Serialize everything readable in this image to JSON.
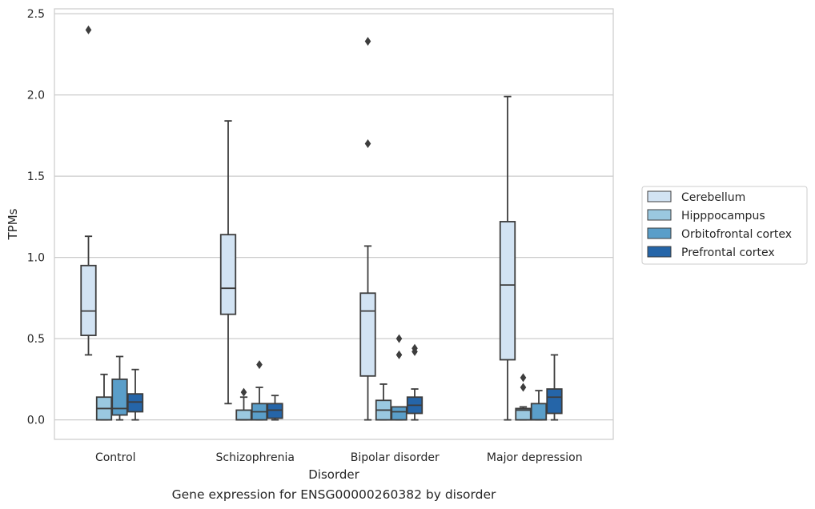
{
  "chart_data": {
    "type": "boxplot",
    "title": "",
    "caption": "Gene expression for ENSG00000260382 by disorder",
    "xlabel": "Disorder",
    "ylabel": "TPMs",
    "ylim": [
      -0.12,
      2.53
    ],
    "yticks": [
      "0.0",
      "0.5",
      "1.0",
      "1.5",
      "2.0",
      "2.5"
    ],
    "ytick_values": [
      0,
      0.5,
      1.0,
      1.5,
      2.0,
      2.5
    ],
    "grid": "horizontal",
    "legend_position": "right",
    "categories": [
      "Control",
      "Schizophrenia",
      "Bipolar disorder",
      "Major depression"
    ],
    "series": [
      {
        "name": "Cerebellum",
        "color": "#d2e3f3",
        "boxes": [
          {
            "whislo": 0.4,
            "q1": 0.52,
            "med": 0.67,
            "q3": 0.95,
            "whishi": 1.13,
            "fliers": [
              2.4
            ]
          },
          {
            "whislo": 0.1,
            "q1": 0.65,
            "med": 0.81,
            "q3": 1.14,
            "whishi": 1.84,
            "fliers": []
          },
          {
            "whislo": 0.0,
            "q1": 0.27,
            "med": 0.67,
            "q3": 0.78,
            "whishi": 1.07,
            "fliers": [
              1.7,
              2.33
            ]
          },
          {
            "whislo": 0.0,
            "q1": 0.37,
            "med": 0.83,
            "q3": 1.22,
            "whishi": 1.99,
            "fliers": []
          }
        ]
      },
      {
        "name": "Hipppocampus",
        "color": "#9ac8e0",
        "boxes": [
          {
            "whislo": 0.0,
            "q1": 0.0,
            "med": 0.07,
            "q3": 0.14,
            "whishi": 0.28,
            "fliers": []
          },
          {
            "whislo": 0.0,
            "q1": 0.0,
            "med": 0.0,
            "q3": 0.06,
            "whishi": 0.14,
            "fliers": [
              0.17
            ]
          },
          {
            "whislo": 0.0,
            "q1": 0.0,
            "med": 0.06,
            "q3": 0.12,
            "whishi": 0.22,
            "fliers": []
          },
          {
            "whislo": 0.0,
            "q1": 0.0,
            "med": 0.06,
            "q3": 0.07,
            "whishi": 0.08,
            "fliers": [
              0.2,
              0.26
            ]
          }
        ]
      },
      {
        "name": "Orbitofrontal cortex",
        "color": "#5a9ec9",
        "boxes": [
          {
            "whislo": 0.0,
            "q1": 0.03,
            "med": 0.07,
            "q3": 0.25,
            "whishi": 0.39,
            "fliers": []
          },
          {
            "whislo": 0.0,
            "q1": 0.0,
            "med": 0.05,
            "q3": 0.1,
            "whishi": 0.2,
            "fliers": [
              0.34
            ]
          },
          {
            "whislo": 0.0,
            "q1": 0.0,
            "med": 0.05,
            "q3": 0.08,
            "whishi": 0.08,
            "fliers": [
              0.4,
              0.5
            ]
          },
          {
            "whislo": 0.0,
            "q1": 0.0,
            "med": 0.0,
            "q3": 0.1,
            "whishi": 0.18,
            "fliers": []
          }
        ]
      },
      {
        "name": "Prefrontal cortex",
        "color": "#2565a8",
        "boxes": [
          {
            "whislo": 0.0,
            "q1": 0.05,
            "med": 0.11,
            "q3": 0.16,
            "whishi": 0.31,
            "fliers": []
          },
          {
            "whislo": 0.0,
            "q1": 0.01,
            "med": 0.06,
            "q3": 0.1,
            "whishi": 0.15,
            "fliers": []
          },
          {
            "whislo": 0.0,
            "q1": 0.04,
            "med": 0.09,
            "q3": 0.14,
            "whishi": 0.19,
            "fliers": [
              0.42,
              0.44
            ]
          },
          {
            "whislo": 0.0,
            "q1": 0.04,
            "med": 0.14,
            "q3": 0.19,
            "whishi": 0.4,
            "fliers": []
          }
        ]
      }
    ],
    "colors": {
      "grid": "#cccccc",
      "frame": "#cccccc",
      "line": "#3d3d3d",
      "text": "#262626"
    }
  }
}
